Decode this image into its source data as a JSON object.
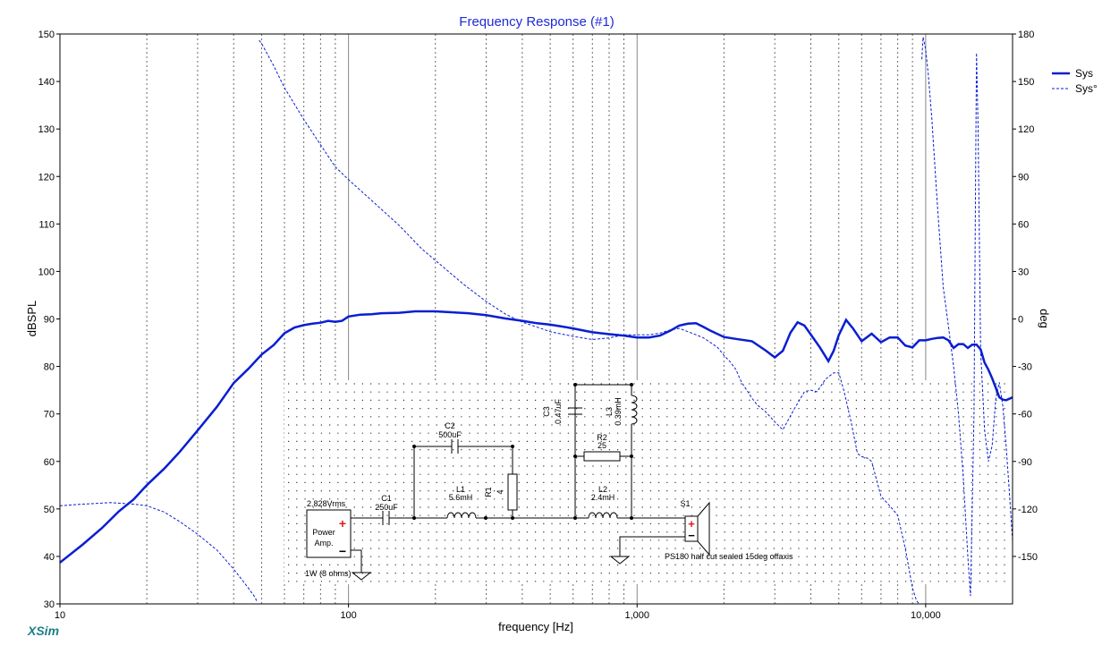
{
  "app": {
    "name": "XSim"
  },
  "chart_data": {
    "type": "line",
    "title": "Frequency Response (#1)",
    "xlabel": "frequency [Hz]",
    "ylabel": "dBSPL",
    "y2label": "deg",
    "xscale": "log",
    "xlim": [
      10,
      20000
    ],
    "ylim": [
      30,
      150
    ],
    "y2lim": [
      -180,
      180
    ],
    "x_ticks": [
      {
        "v": 10,
        "label": "10"
      },
      {
        "v": 100,
        "label": "100"
      },
      {
        "v": 1000,
        "label": "1,000"
      },
      {
        "v": 10000,
        "label": "10,000"
      }
    ],
    "y_ticks": [
      30,
      40,
      50,
      60,
      70,
      80,
      90,
      100,
      110,
      120,
      130,
      140,
      150
    ],
    "y2_ticks": [
      -150,
      -120,
      -90,
      -60,
      -30,
      0,
      30,
      60,
      90,
      120,
      150,
      180
    ],
    "grid": true,
    "legend": {
      "position": "top-right",
      "entries": [
        "Sys",
        "Sys°"
      ]
    },
    "series": [
      {
        "name": "Sys",
        "axis": "left",
        "style": "solid",
        "color": "#0a1ed2",
        "x": [
          10,
          12,
          14,
          16,
          18,
          20,
          23,
          26,
          30,
          35,
          40,
          45,
          50,
          55,
          60,
          65,
          70,
          75,
          80,
          85,
          90,
          95,
          100,
          110,
          120,
          130,
          150,
          170,
          200,
          230,
          260,
          300,
          350,
          400,
          450,
          500,
          550,
          600,
          700,
          800,
          900,
          1000,
          1100,
          1200,
          1300,
          1400,
          1500,
          1600,
          1700,
          1800,
          2000,
          2200,
          2500,
          2800,
          3000,
          3200,
          3400,
          3600,
          3800,
          4000,
          4300,
          4600,
          4800,
          5000,
          5300,
          5600,
          6000,
          6500,
          7000,
          7500,
          8000,
          8500,
          9000,
          9500,
          10000,
          10500,
          11000,
          11500,
          12000,
          12500,
          13000,
          13500,
          14000,
          14500,
          15000,
          15500,
          16000,
          16500,
          17000,
          17500,
          18000,
          18500,
          19000,
          19500,
          20000
        ],
        "values": [
          38.7,
          42.5,
          46,
          49.5,
          52,
          55,
          58.5,
          62,
          66.5,
          71.5,
          76.5,
          79.5,
          82.5,
          84.5,
          87,
          88.2,
          88.7,
          89,
          89.2,
          89.6,
          89.4,
          89.6,
          90.5,
          90.9,
          91,
          91.2,
          91.3,
          91.6,
          91.6,
          91.4,
          91.2,
          90.8,
          90.1,
          89.6,
          89.1,
          88.8,
          88.4,
          88,
          87.2,
          86.8,
          86.5,
          86.1,
          86.1,
          86.5,
          87.5,
          88.6,
          89,
          89.1,
          88.3,
          87.5,
          86.2,
          85.8,
          85.3,
          83.3,
          81.9,
          83.3,
          87.1,
          89.3,
          88.6,
          86.7,
          84,
          81.1,
          83.3,
          86.6,
          89.8,
          88,
          85.3,
          86.9,
          85.1,
          86.1,
          86.1,
          84.4,
          84,
          85.5,
          85.5,
          85.8,
          86,
          86.1,
          85.5,
          83.9,
          84.7,
          84.7,
          83.9,
          84.6,
          84.6,
          83.6,
          80.8,
          79.3,
          77.5,
          75.5,
          73.5,
          73,
          72.9,
          73.2,
          73.5
        ]
      },
      {
        "name": "Sys°",
        "axis": "right",
        "style": "dashed",
        "color": "#0a1ed2",
        "x": [
          10,
          12,
          15,
          18,
          20,
          23,
          26,
          30,
          35,
          40,
          45,
          47.5,
          48,
          49,
          50,
          55,
          60,
          70,
          80,
          90,
          100,
          120,
          150,
          180,
          200,
          250,
          300,
          350,
          400,
          500,
          600,
          700,
          800,
          900,
          1000,
          1100,
          1200,
          1300,
          1400,
          1500,
          1600,
          1700,
          1800,
          1900,
          2000,
          2100,
          2200,
          2300,
          2400,
          2500,
          2600,
          2800,
          3000,
          3200,
          3500,
          3800,
          4000,
          4200,
          4500,
          4800,
          5000,
          5200,
          5500,
          5800,
          6000,
          6300,
          6500,
          7000,
          7500,
          8000,
          8500,
          9000,
          9300,
          9500,
          9700,
          9800,
          9900,
          10000,
          10200,
          10500,
          11000,
          11500,
          12000,
          12500,
          13000,
          13500,
          14000,
          14300,
          14500,
          14700,
          14900,
          15000,
          15200,
          15500,
          16000,
          16500,
          17000,
          17500,
          18000,
          18500,
          19000,
          19500,
          20000
        ],
        "values": [
          -118,
          -117,
          -116,
          -117,
          -118,
          -122,
          -128,
          -136,
          -146,
          -158,
          -170,
          -176,
          -178,
          176,
          174,
          160,
          146,
          126,
          110,
          96,
          88,
          75,
          59,
          44,
          37,
          22,
          11,
          3,
          -2,
          -8,
          -11,
          -13,
          -12,
          -10,
          -10,
          -10,
          -9,
          -7,
          -6,
          -8,
          -10,
          -12,
          -15,
          -18,
          -23,
          -27,
          -32,
          -40,
          -45,
          -50,
          -54,
          -59,
          -65,
          -70,
          -57,
          -46,
          -45,
          -46,
          -38,
          -34,
          -34,
          -45,
          -64,
          -85,
          -87,
          -88,
          -90,
          -112,
          -118,
          -124,
          -145,
          -170,
          -178,
          -180,
          164,
          178,
          174,
          170,
          155,
          127,
          70,
          20,
          -5,
          -30,
          -60,
          -100,
          -150,
          -175,
          -120,
          -60,
          100,
          168,
          120,
          -20,
          -70,
          -90,
          -80,
          -50,
          -40,
          -55,
          -80,
          -110,
          -140
        ]
      }
    ]
  },
  "schematic": {
    "source": {
      "voltage": "2.828Vrms",
      "label": "Power Amp.",
      "plus": "+",
      "minus": "−",
      "power": "1W (8 ohms)"
    },
    "components": [
      {
        "ref": "C1",
        "value": "250uF"
      },
      {
        "ref": "C2",
        "value": "500uF"
      },
      {
        "ref": "L1",
        "value": "5.6mH"
      },
      {
        "ref": "R1",
        "value": "4"
      },
      {
        "ref": "C3",
        "value": "0.47uF"
      },
      {
        "ref": "L3",
        "value": "0.39mH"
      },
      {
        "ref": "R2",
        "value": "25"
      },
      {
        "ref": "L2",
        "value": "2.4mH"
      }
    ],
    "driver": {
      "ref": "S1",
      "description": "PS180 half cut sealed 15deg offaxis",
      "plus": "+",
      "minus": "−"
    }
  },
  "colors": {
    "trace": "#0a1ed2",
    "title": "#1e2ad6",
    "grid": "#6b6b6b",
    "dots": "#3a3a3a",
    "brand": "#1a7f86",
    "plus": "#e01818"
  }
}
